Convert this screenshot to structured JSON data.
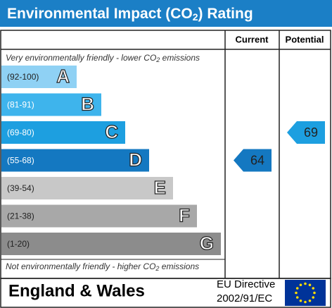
{
  "header": {
    "title": {
      "text": "Environmental Impact (CO",
      "subscript": "2",
      "suffix": ") Rating"
    }
  },
  "columns": {
    "current": "Current",
    "potential": "Potential"
  },
  "top_note": {
    "text": "Very environmentally friendly - lower CO",
    "subscript": "2",
    "suffix": " emissions"
  },
  "bands": [
    {
      "range": "(92-100)",
      "letter": "A",
      "color": "#8fd1f4"
    },
    {
      "range": "(81-91)",
      "letter": "B",
      "color": "#3eb4ec"
    },
    {
      "range": "(69-80)",
      "letter": "C",
      "color": "#1d9fe0"
    },
    {
      "range": "(55-68)",
      "letter": "D",
      "color": "#1478c1"
    },
    {
      "range": "(39-54)",
      "letter": "E",
      "color": "#c8c8c8"
    },
    {
      "range": "(21-38)",
      "letter": "F",
      "color": "#a8a8a8"
    },
    {
      "range": "(1-20)",
      "letter": "G",
      "color": "#8c8c8c"
    }
  ],
  "current": 64,
  "potential": 69,
  "bottom_note": {
    "text": "Not environmentally friendly - higher CO",
    "subscript": "2",
    "suffix": " emissions"
  },
  "footer": {
    "region": "England & Wales",
    "directive": "EU Directive",
    "directive_number": "2002/91/EC"
  }
}
